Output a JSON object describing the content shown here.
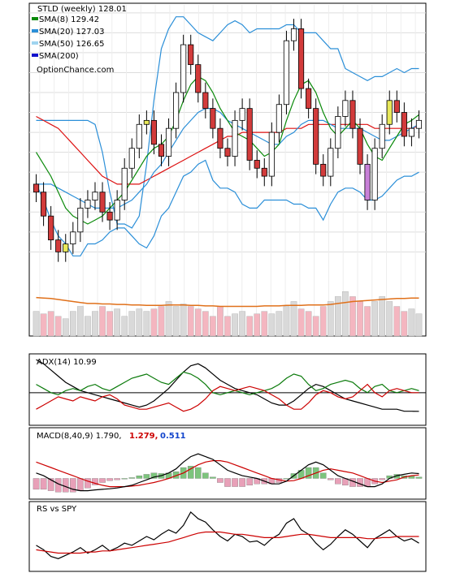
{
  "chart_data": [
    {
      "type": "candlestick",
      "panel": "price",
      "title": "STLD (weekly) 128.01",
      "watermark": "OptionChance.com",
      "legend": [
        {
          "label": "SMA(8) 129.42",
          "color": "#0a8a0a"
        },
        {
          "label": "SMA(20) 127.03",
          "color": "#2b8fd8"
        },
        {
          "label": "SMA(50) 126.65",
          "color": "#9fd4f0"
        },
        {
          "label": "SMA(200)",
          "color": "#1212cc"
        }
      ],
      "legend_placement": "top-left",
      "yticks": [
        155,
        150,
        145,
        140,
        135,
        130,
        125,
        120,
        115,
        110,
        105,
        100,
        95
      ],
      "ylim": [
        91,
        157
      ],
      "xticks": [
        "A",
        "M",
        "J",
        "J",
        "A",
        "S",
        "O",
        "N",
        "D",
        "24",
        "F",
        "M",
        "A",
        "M",
        "J",
        "J",
        "A",
        "S",
        "O",
        "N",
        "D",
        "25",
        "F",
        "M",
        "A",
        "M",
        "J"
      ],
      "close": [
        110,
        104,
        98,
        95,
        97,
        100,
        106,
        108,
        110,
        105,
        103,
        108,
        116,
        121,
        127,
        128,
        122,
        119,
        126,
        135,
        147,
        142,
        135,
        131,
        126,
        121,
        119,
        128,
        131,
        118,
        116,
        114,
        125,
        132,
        148,
        151,
        136,
        131,
        117,
        114,
        121,
        129,
        133,
        126,
        117,
        108,
        121,
        127,
        133,
        130,
        124,
        126,
        128.01
      ],
      "sma20_upper": [
        128,
        128,
        128,
        128,
        128,
        128,
        128,
        128,
        127,
        120,
        110,
        102,
        102,
        101,
        104,
        117,
        133,
        146,
        151,
        154,
        154,
        152,
        150,
        149,
        148,
        150,
        152,
        153,
        152,
        150,
        151,
        151,
        151,
        151,
        152,
        152,
        150,
        150,
        150,
        148,
        146,
        146,
        141,
        140,
        139,
        138,
        139,
        139,
        140,
        141,
        140,
        141,
        141
      ],
      "sma20_lower": [
        112,
        108,
        103,
        99,
        97,
        94,
        94,
        97,
        97,
        98,
        100,
        101,
        101,
        99,
        97,
        96,
        99,
        104,
        106,
        110,
        114,
        115,
        117,
        118,
        113,
        111,
        111,
        110,
        107,
        106,
        106,
        108,
        108,
        108,
        108,
        107,
        107,
        106,
        106,
        103,
        107,
        110,
        111,
        111,
        110,
        108,
        108,
        109,
        111,
        113,
        114,
        114,
        115
      ],
      "sma8": [
        120,
        117,
        114,
        110,
        106,
        104,
        103,
        102,
        103,
        104,
        106,
        108,
        110,
        113,
        116,
        119,
        121,
        122,
        124,
        128,
        133,
        137,
        139,
        138,
        135,
        131,
        128,
        125,
        124,
        123,
        121,
        119,
        120,
        122,
        128,
        133,
        137,
        138,
        135,
        130,
        126,
        124,
        126,
        128,
        126,
        122,
        119,
        118,
        121,
        124,
        127,
        128,
        129.42
      ],
      "sma20": [
        112,
        112,
        112,
        111,
        110,
        109,
        108,
        107,
        106,
        106,
        106,
        106,
        107,
        108,
        110,
        112,
        115,
        117,
        120,
        123,
        126,
        128,
        130,
        131,
        131,
        130,
        128,
        127,
        126,
        125,
        124,
        123,
        122,
        122,
        124,
        125,
        127,
        128,
        128,
        128,
        127,
        126,
        126,
        126,
        126,
        125,
        124,
        123,
        123,
        124,
        125,
        126,
        127.03
      ],
      "sma50": [
        129,
        128,
        127,
        126,
        124,
        122,
        120,
        118,
        116,
        114,
        113,
        112,
        112,
        112,
        112,
        113,
        114,
        115,
        116,
        117,
        118,
        119,
        120,
        121,
        122,
        123,
        124,
        124,
        125,
        125,
        125,
        125,
        125,
        125,
        126,
        126,
        126,
        127,
        127,
        127,
        127,
        127,
        127,
        127,
        127,
        127,
        126,
        126,
        126,
        126,
        126,
        126,
        126.65
      ]
    },
    {
      "type": "bar",
      "panel": "volume",
      "yticks": [
        "12M",
        "10M",
        "8M",
        "6M",
        "4M",
        "2M"
      ],
      "ylim": [
        0,
        13
      ],
      "values": [
        5,
        4.5,
        5,
        4,
        3.5,
        5,
        6,
        4,
        5,
        6,
        5,
        5.5,
        4,
        5,
        5.5,
        5,
        5.5,
        6,
        7,
        6,
        6.5,
        6,
        5.5,
        5,
        4,
        6,
        4,
        4.5,
        5,
        4,
        4.5,
        5,
        4.5,
        5,
        6,
        7,
        5.5,
        5,
        4,
        6,
        7,
        8,
        9,
        8,
        7,
        6,
        7,
        8,
        7,
        6,
        5,
        5.5,
        4.5
      ],
      "avg": [
        7.8,
        7.7,
        7.6,
        7.4,
        7.2,
        7,
        6.8,
        6.6,
        6.6,
        6.5,
        6.5,
        6.4,
        6.4,
        6.3,
        6.3,
        6.2,
        6.2,
        6.2,
        6.3,
        6.3,
        6.3,
        6.2,
        6.2,
        6.1,
        6.1,
        6,
        6,
        6,
        6,
        6,
        6,
        6.1,
        6.1,
        6.1,
        6.2,
        6.2,
        6.2,
        6.3,
        6.3,
        6.3,
        6.4,
        6.6,
        6.8,
        7,
        7.1,
        7.2,
        7.3,
        7.4,
        7.5,
        7.6,
        7.6,
        7.7,
        7.7
      ]
    },
    {
      "type": "line",
      "panel": "adx",
      "title": "ADX(14) 10.99",
      "yticks": [
        30,
        20,
        10
      ],
      "ylim": [
        5,
        38
      ],
      "series": [
        {
          "color": "#000000",
          "values": [
            36,
            34,
            31,
            28,
            25,
            23,
            21,
            20,
            19,
            18,
            17,
            16,
            15,
            14,
            13,
            14,
            16,
            19,
            22,
            26,
            30,
            33,
            34,
            32,
            29,
            26,
            24,
            22,
            21,
            20,
            19,
            17,
            15,
            14,
            14,
            16,
            19,
            22,
            24,
            23,
            21,
            19,
            17,
            16,
            15,
            14,
            13,
            12,
            12,
            12,
            11,
            11,
            10.99
          ]
        },
        {
          "color": "#0a7a0a",
          "values": [
            24,
            22,
            20,
            19,
            21,
            22,
            21,
            23,
            24,
            22,
            21,
            23,
            25,
            27,
            28,
            29,
            27,
            25,
            24,
            27,
            30,
            29,
            27,
            24,
            20,
            19,
            20,
            21,
            20,
            19,
            20,
            21,
            22,
            24,
            27,
            29,
            28,
            24,
            21,
            22,
            24,
            25,
            26,
            25,
            22,
            20,
            23,
            24,
            21,
            20,
            21,
            22,
            21
          ]
        },
        {
          "color": "#cc0000",
          "values": [
            12,
            14,
            16,
            18,
            17,
            16,
            18,
            17,
            16,
            18,
            19,
            17,
            14,
            13,
            12,
            12,
            13,
            14,
            15,
            13,
            11,
            12,
            14,
            17,
            21,
            23,
            22,
            21,
            22,
            23,
            22,
            21,
            19,
            17,
            14,
            12,
            12,
            15,
            19,
            21,
            20,
            18,
            17,
            18,
            21,
            24,
            20,
            18,
            21,
            22,
            21,
            20,
            20
          ]
        }
      ]
    },
    {
      "type": "line",
      "panel": "macd",
      "title": "MACD(8,40,9) 1.790,",
      "signal_label": "1.279,",
      "hist_label": "0.511",
      "yticks": [
        15,
        10,
        5,
        0,
        -5
      ],
      "ylim": [
        -7,
        18
      ],
      "macd": [
        2,
        1,
        -0.5,
        -2,
        -3,
        -4,
        -4.5,
        -4.5,
        -4.2,
        -4,
        -3.8,
        -3.5,
        -3,
        -2.5,
        -1.5,
        -0.5,
        0.5,
        1,
        2,
        3.5,
        6,
        8,
        9,
        8,
        7,
        5,
        3,
        2,
        1,
        0.5,
        0,
        -1,
        -2,
        -2,
        -1,
        1,
        3,
        5,
        6,
        5,
        3,
        1,
        0,
        -1,
        -2,
        -3,
        -3,
        -2,
        0,
        1,
        1.5,
        2,
        1.79
      ],
      "signal": [
        6,
        5,
        4,
        3,
        2,
        1,
        0,
        -1,
        -1.8,
        -2.5,
        -3,
        -3,
        -3,
        -2.8,
        -2.5,
        -2,
        -1.5,
        -0.8,
        0,
        1,
        2,
        3.5,
        5,
        6,
        6.5,
        6.5,
        6,
        5,
        4,
        3,
        2,
        1,
        0,
        -0.5,
        -1,
        -0.8,
        0,
        1,
        2,
        3,
        3.5,
        3,
        2.5,
        2,
        1,
        0,
        -1,
        -1.5,
        -1,
        -0.5,
        0.5,
        1,
        1.279
      ]
    },
    {
      "type": "line",
      "panel": "rs",
      "title": "RS vs SPY",
      "series": [
        {
          "color": "#000000",
          "values": [
            62,
            58,
            52,
            50,
            53,
            56,
            60,
            55,
            58,
            62,
            57,
            60,
            64,
            62,
            66,
            70,
            67,
            72,
            76,
            73,
            80,
            92,
            86,
            83,
            76,
            70,
            66,
            72,
            70,
            65,
            66,
            62,
            68,
            72,
            82,
            86,
            76,
            72,
            64,
            58,
            63,
            70,
            76,
            72,
            66,
            60,
            68,
            72,
            76,
            70,
            66,
            68,
            64
          ]
        },
        {
          "color": "#cc0000",
          "values": [
            58,
            57,
            56,
            55,
            55,
            55,
            55,
            56,
            56,
            57,
            57,
            58,
            59,
            60,
            61,
            62,
            63,
            64,
            65,
            67,
            69,
            71,
            73,
            74,
            74,
            74,
            73,
            72,
            72,
            71,
            70,
            69,
            69,
            69,
            70,
            71,
            72,
            72,
            71,
            70,
            69,
            69,
            69,
            69,
            69,
            68,
            68,
            69,
            69,
            70,
            70,
            70,
            70
          ]
        }
      ]
    }
  ]
}
